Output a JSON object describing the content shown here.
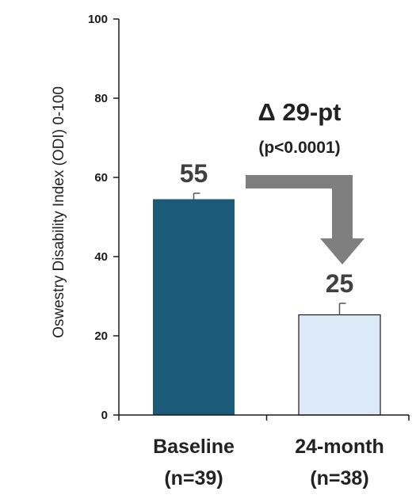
{
  "chart_data": {
    "type": "bar",
    "title": "",
    "ylabel": "Oswestry Disability Index (ODI) 0-100",
    "xlabel": "",
    "ylim": [
      0,
      100
    ],
    "yticks": [
      0,
      20,
      40,
      60,
      80,
      100
    ],
    "categories": [
      {
        "name": "Baseline",
        "n_label": "(n=39)"
      },
      {
        "name": "24-month",
        "n_label": "(n=38)"
      }
    ],
    "values": [
      54.5,
      25.3
    ],
    "error_upper": [
      56,
      28.2
    ],
    "value_labels": [
      "55",
      "25"
    ],
    "bar_colors": [
      "#1b5a78",
      "#dce9f7"
    ],
    "bar_edge_color": "#1a1a1a",
    "annotation": {
      "delta_label": "Δ 29-pt",
      "p_label": "(p<0.0001)",
      "arrow_color": "#7f7f7f"
    },
    "grid": false,
    "legend": "none"
  }
}
